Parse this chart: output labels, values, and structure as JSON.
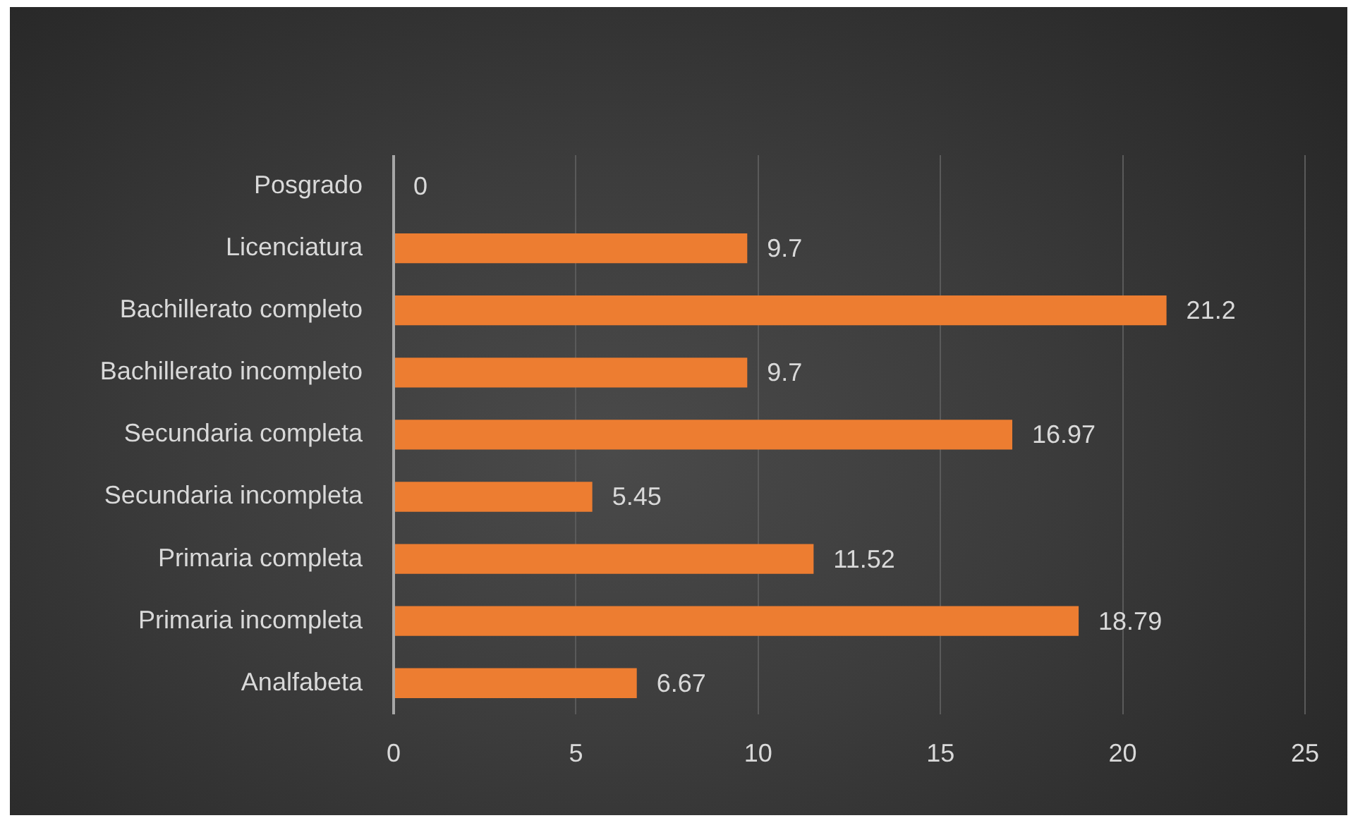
{
  "chart_data": {
    "type": "bar",
    "orientation": "horizontal",
    "categories": [
      "Posgrado",
      "Licenciatura",
      "Bachillerato completo",
      "Bachillerato incompleto",
      "Secundaria completa",
      "Secundaria incompleta",
      "Primaria completa",
      "Primaria incompleta",
      "Analfabeta"
    ],
    "values": [
      0,
      9.7,
      21.2,
      9.7,
      16.97,
      5.45,
      11.52,
      18.79,
      6.67
    ],
    "color": "#ed7d31",
    "xlim": [
      0,
      25
    ],
    "xticks": [
      0,
      5,
      10,
      15,
      20,
      25
    ],
    "grid": "x",
    "data_labels": true
  }
}
